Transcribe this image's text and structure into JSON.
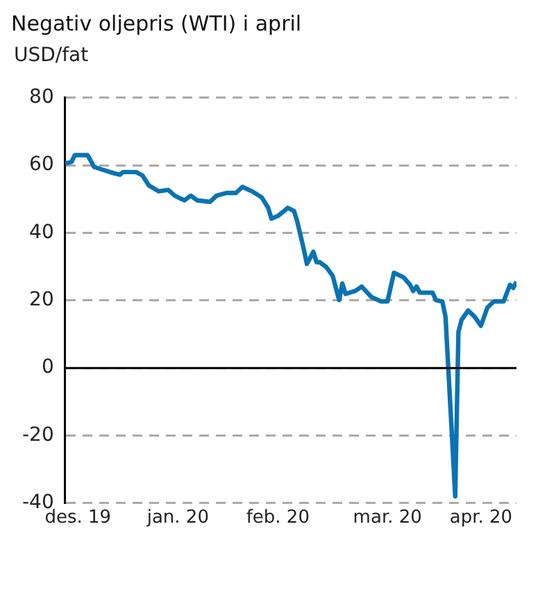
{
  "chart_data": {
    "type": "line",
    "title": "Negativ oljepris (WTI) i april",
    "ylabel": "USD/fat",
    "x": [
      "2019-12-11",
      "2019-12-13",
      "2019-12-14",
      "2019-12-18",
      "2019-12-20",
      "2019-12-23",
      "2019-12-26",
      "2019-12-28",
      "2019-12-29",
      "2020-01-02",
      "2020-01-04",
      "2020-01-06",
      "2020-01-09",
      "2020-01-12",
      "2020-01-14",
      "2020-01-17",
      "2020-01-19",
      "2020-01-21",
      "2020-01-25",
      "2020-01-27",
      "2020-01-30",
      "2020-02-02",
      "2020-02-04",
      "2020-02-07",
      "2020-02-10",
      "2020-02-12",
      "2020-02-13",
      "2020-02-15",
      "2020-02-17",
      "2020-02-18",
      "2020-02-20",
      "2020-02-21",
      "2020-02-23",
      "2020-02-24",
      "2020-02-26",
      "2020-02-27",
      "2020-02-28",
      "2020-03-01",
      "2020-03-03",
      "2020-03-05",
      "2020-03-06",
      "2020-03-07",
      "2020-03-10",
      "2020-03-12",
      "2020-03-15",
      "2020-03-18",
      "2020-03-20",
      "2020-03-22",
      "2020-03-25",
      "2020-03-27",
      "2020-03-28",
      "2020-03-29",
      "2020-03-30",
      "2020-04-03",
      "2020-04-04",
      "2020-04-06",
      "2020-04-07",
      "2020-04-10",
      "2020-04-11",
      "2020-04-12",
      "2020-04-14",
      "2020-04-16",
      "2020-04-18",
      "2020-04-20",
      "2020-04-22",
      "2020-04-25",
      "2020-04-27",
      "2020-04-28",
      "2020-04-29"
    ],
    "series": [
      {
        "color": "#0a73b3",
        "values": [
          60.5,
          61,
          63,
          63,
          59.5,
          58.6,
          57.7,
          57.2,
          58,
          58,
          57,
          54,
          52.3,
          52.7,
          51,
          49.6,
          51,
          49.6,
          49.2,
          51,
          51.8,
          51.8,
          53.6,
          52.3,
          50.5,
          47.4,
          44.2,
          45,
          46.5,
          47.4,
          46.5,
          43.4,
          35.3,
          30.8,
          34.4,
          31.3,
          31.3,
          29.9,
          27.3,
          20.1,
          25,
          21.9,
          22.8,
          24.1,
          21,
          19.7,
          19.7,
          28.2,
          26.8,
          24.6,
          22.8,
          24.1,
          22.3,
          22.3,
          20.1,
          19.7,
          15.2,
          -38,
          10.7,
          14.3,
          17,
          15.2,
          12.5,
          17.9,
          19.7,
          19.7,
          24.6,
          23.7,
          25.5
        ]
      }
    ],
    "xlim": [
      "2019-12-11",
      "2020-04-29"
    ],
    "xticks": [
      {
        "value": "2019-12-15",
        "label": "des. 19"
      },
      {
        "value": "2020-01-15",
        "label": "jan. 20"
      },
      {
        "value": "2020-02-15",
        "label": "feb. 20"
      },
      {
        "value": "2020-03-20",
        "label": "mar. 20"
      },
      {
        "value": "2020-04-18",
        "label": "apr. 20"
      }
    ],
    "ylim": [
      -40,
      80
    ],
    "yticks": [
      -40,
      -20,
      0,
      20,
      40,
      60,
      80
    ],
    "grid": "y",
    "legend": false,
    "marker": "none",
    "line_style": "solid",
    "ref_lines": [
      {
        "axis": "y",
        "value": 0,
        "color": "#000000",
        "line_style": "solid"
      }
    ]
  }
}
